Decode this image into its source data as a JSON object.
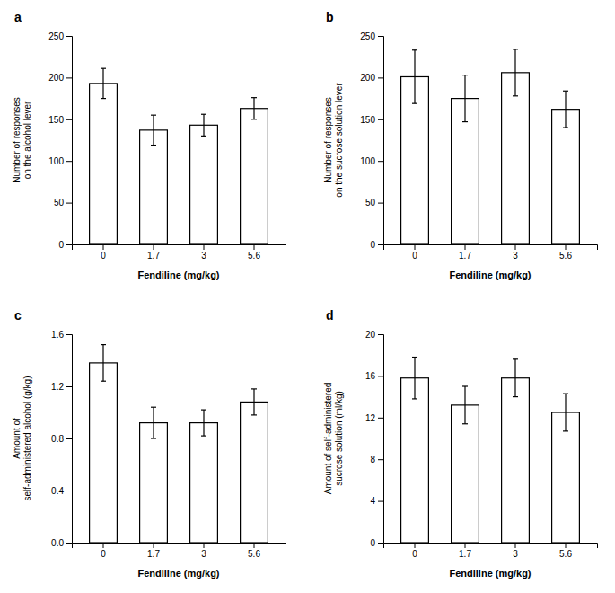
{
  "chart_data": [
    {
      "type": "bar",
      "title": "a",
      "categories": [
        "0",
        "1.7",
        "3",
        "5.6"
      ],
      "values": [
        193,
        137,
        143,
        163
      ],
      "errors": [
        18,
        18,
        13,
        13
      ],
      "xlabel": "Fendiline (mg/kg)",
      "ylabel": "Number of responses\non the alcohol lever",
      "ylim": [
        0,
        250
      ],
      "yticks": [
        0,
        50,
        100,
        150,
        200,
        250
      ],
      "color": "white",
      "grid": false
    },
    {
      "type": "bar",
      "title": "b",
      "categories": [
        "0",
        "1.7",
        "3",
        "5.6"
      ],
      "values": [
        201,
        175,
        206,
        162
      ],
      "errors": [
        32,
        28,
        28,
        22
      ],
      "xlabel": "Fendiline (mg/kg)",
      "ylabel": "Number of responses\non the sucrose solution lever",
      "ylim": [
        0,
        250
      ],
      "yticks": [
        0,
        50,
        100,
        150,
        200,
        250
      ],
      "color": "white",
      "grid": false
    },
    {
      "type": "bar",
      "title": "c",
      "categories": [
        "0",
        "1.7",
        "3",
        "5.6"
      ],
      "values": [
        1.38,
        0.92,
        0.92,
        1.08
      ],
      "errors": [
        0.14,
        0.12,
        0.1,
        0.1
      ],
      "xlabel": "Fendiline (mg/kg)",
      "ylabel": "Amount of\nself-administered alcohol (g/kg)",
      "ylim": [
        0.0,
        1.6
      ],
      "yticks": [
        {
          "value": 0.0,
          "label": "0.0"
        },
        0.4,
        0.8,
        1.2,
        1.6
      ],
      "color": "white",
      "grid": false
    },
    {
      "type": "bar",
      "title": "d",
      "categories": [
        "0",
        "1.7",
        "3",
        "5.6"
      ],
      "values": [
        15.8,
        13.2,
        15.8,
        12.5
      ],
      "errors": [
        2.0,
        1.8,
        1.8,
        1.8
      ],
      "xlabel": "Fendiline (mg/kg)",
      "ylabel": "Amount of self-administered\nsucrose solution (ml/kg)",
      "ylim": [
        0,
        20
      ],
      "yticks": [
        0,
        4,
        8,
        12,
        16,
        20
      ],
      "color": "white",
      "grid": false
    }
  ]
}
